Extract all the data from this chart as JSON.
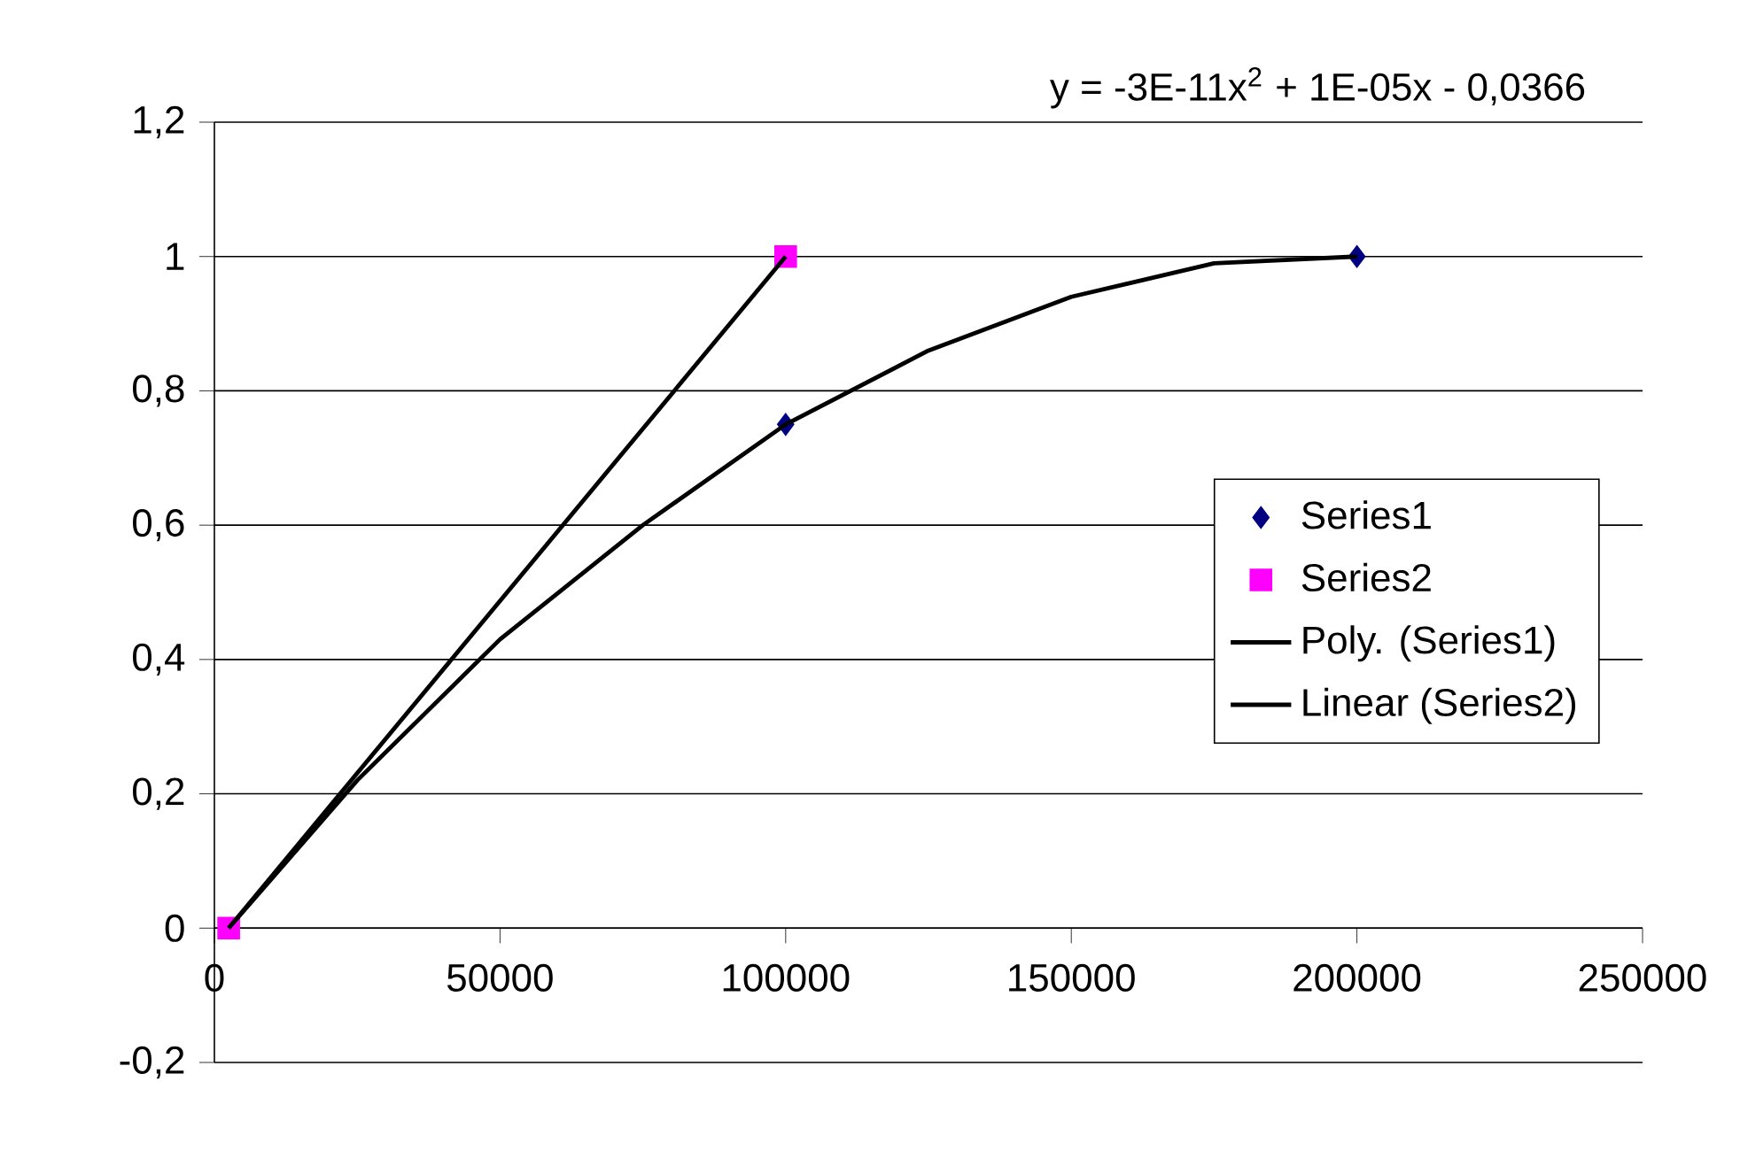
{
  "chart_data": {
    "type": "scatter",
    "annotations": [
      "y = -3E-11x$^{2}$ + 1E-05x - 0,0366"
    ],
    "xlim": [
      0,
      250000
    ],
    "xticks": [
      0,
      50000,
      100000,
      150000,
      200000,
      250000
    ],
    "ylim": [
      -0.2,
      1.2
    ],
    "yticks": [
      {
        "value": -0.2,
        "label": "-0,2"
      },
      0,
      {
        "value": 0.2,
        "label": "0,2"
      },
      {
        "value": 0.4,
        "label": "0,4"
      },
      {
        "value": 0.6,
        "label": "0,6"
      },
      {
        "value": 0.8,
        "label": "0,8"
      },
      1,
      {
        "value": 1.2,
        "label": "1,2"
      }
    ],
    "grid": "y",
    "legend": "right",
    "series": [
      {
        "name": "Series1",
        "marker": "diamond",
        "color": "#000080",
        "x": [
          100000,
          200000
        ],
        "values": [
          0.75,
          1
        ]
      },
      {
        "name": "Series2",
        "marker": "square",
        "color": "#ff00ff",
        "x": [
          2500,
          100000
        ],
        "values": [
          0,
          1
        ]
      },
      {
        "name": "Poly. (Series1)",
        "type": "line",
        "marker": "none",
        "color": "#000000",
        "x": [
          2500,
          25000,
          50000,
          75000,
          100000,
          125000,
          150000,
          175000,
          200000
        ],
        "values": [
          0,
          0.22,
          0.43,
          0.6,
          0.75,
          0.86,
          0.94,
          0.99,
          1
        ]
      },
      {
        "name": "Linear (Series2)",
        "type": "line",
        "marker": "none",
        "color": "#000000",
        "x": [
          2500,
          100000
        ],
        "values": [
          0,
          1
        ]
      }
    ]
  }
}
